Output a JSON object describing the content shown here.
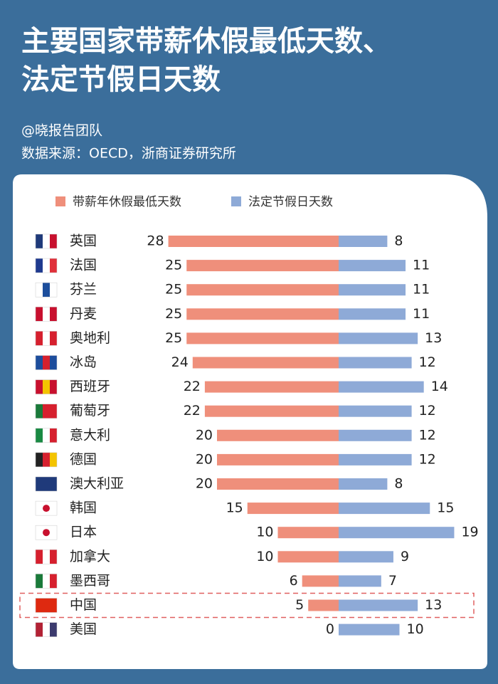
{
  "title_lines": [
    "主要国家带薪休假最低天数、",
    "法定节假日天数"
  ],
  "author": "@晓报告团队",
  "source": "数据来源：OECD，浙商证券研究所",
  "chart_data": {
    "type": "diverging_bar",
    "categories": [
      "英国",
      "法国",
      "芬兰",
      "丹麦",
      "奥地利",
      "冰岛",
      "西班牙",
      "葡萄牙",
      "意大利",
      "德国",
      "澳大利亚",
      "韩国",
      "日本",
      "加拿大",
      "墨西哥",
      "中国",
      "美国"
    ],
    "series": [
      {
        "name": "带薪年休假最低天数",
        "color": "#ef8f7b",
        "values": [
          28,
          25,
          25,
          25,
          25,
          24,
          22,
          22,
          20,
          20,
          20,
          15,
          10,
          10,
          6,
          5,
          0
        ]
      },
      {
        "name": "法定节假日天数",
        "color": "#8eaad7",
        "values": [
          8,
          11,
          11,
          11,
          13,
          12,
          14,
          12,
          12,
          12,
          8,
          15,
          19,
          9,
          7,
          13,
          10
        ]
      }
    ],
    "highlight": "中国"
  }
}
